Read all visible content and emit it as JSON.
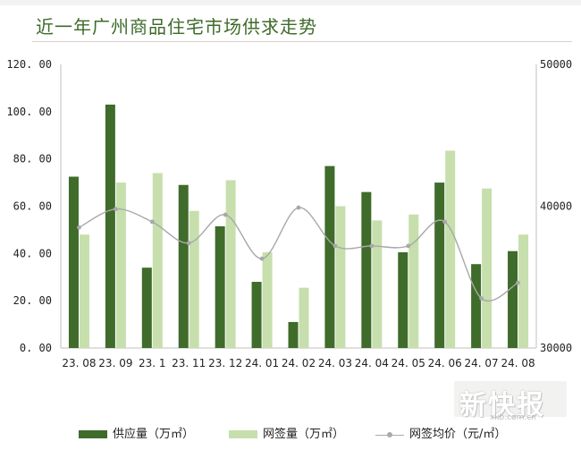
{
  "title": "近一年广州商品住宅市场供求走势",
  "chart_data": {
    "type": "bar",
    "categories": [
      "23. 08",
      "23. 09",
      "23. 1",
      "23. 11",
      "23. 12",
      "24. 01",
      "24. 02",
      "24. 03",
      "24. 04",
      "24. 05",
      "24. 06",
      "24. 07",
      "24. 08"
    ],
    "series": [
      {
        "name": "供应量（万㎡）",
        "type": "bar",
        "axis": "left",
        "color": "#3f6b2b",
        "values": [
          72.5,
          103,
          34,
          69,
          51.5,
          28,
          11,
          77,
          66,
          40.5,
          70,
          35.5,
          41
        ]
      },
      {
        "name": "网签量（万㎡）",
        "type": "bar",
        "axis": "left",
        "color": "#c6dfad",
        "values": [
          48,
          70,
          74,
          58,
          71,
          40.5,
          25.5,
          60,
          54,
          56.5,
          83.5,
          67.5,
          48
        ]
      },
      {
        "name": "网签均价（元/㎡）",
        "type": "line",
        "axis": "right",
        "color": "#a8a8a8",
        "values": [
          38500,
          39800,
          38900,
          37400,
          39400,
          36300,
          39900,
          37200,
          37200,
          37200,
          38900,
          33500,
          34600
        ]
      }
    ],
    "left_axis": {
      "ylim": [
        0,
        120
      ],
      "ticks": [
        "0. 00",
        "20. 00",
        "40. 00",
        "60. 00",
        "80. 00",
        "100. 00",
        "120. 00"
      ]
    },
    "right_axis": {
      "ylim": [
        30000,
        50000
      ],
      "ticks": [
        "30000",
        "40000",
        "50000"
      ]
    },
    "legend": "bottom"
  },
  "legend": {
    "supply": "供应量（万㎡）",
    "signed": "网签量（万㎡）",
    "price": "网签均价（元/㎡）"
  },
  "watermark": {
    "text": "新快报",
    "url": "xkb.com.cn"
  }
}
